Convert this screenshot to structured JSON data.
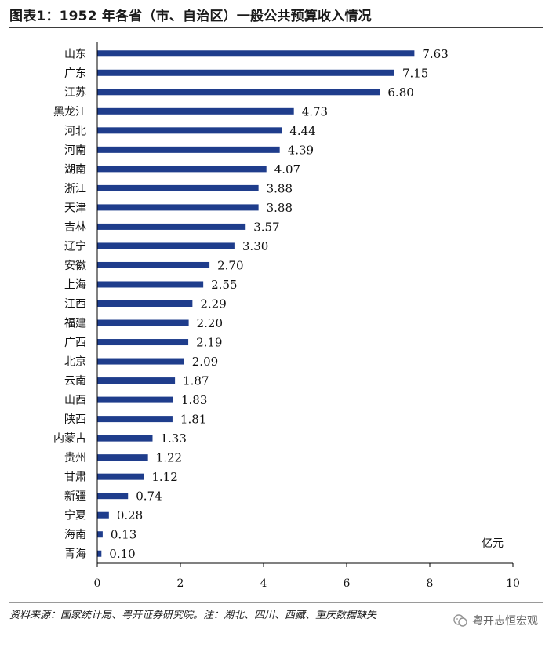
{
  "title": "图表1：1952 年各省（市、自治区）一般公共预算收入情况",
  "source": "资料来源：国家统计局、粤开证券研究院。注：湖北、四川、西藏、重庆数据缺失",
  "watermark": "粤开志恒宏观",
  "colors": {
    "bar": "#1f3d8c",
    "axis": "#000000"
  },
  "chart_data": {
    "type": "bar",
    "orientation": "horizontal",
    "categories": [
      "山东",
      "广东",
      "江苏",
      "黑龙江",
      "河北",
      "河南",
      "湖南",
      "浙江",
      "天津",
      "吉林",
      "辽宁",
      "安徽",
      "上海",
      "江西",
      "福建",
      "广西",
      "北京",
      "云南",
      "山西",
      "陕西",
      "内蒙古",
      "贵州",
      "甘肃",
      "新疆",
      "宁夏",
      "海南",
      "青海"
    ],
    "values": [
      7.63,
      7.15,
      6.8,
      4.73,
      4.44,
      4.39,
      4.07,
      3.88,
      3.88,
      3.57,
      3.3,
      2.7,
      2.55,
      2.29,
      2.2,
      2.19,
      2.09,
      1.87,
      1.83,
      1.81,
      1.33,
      1.22,
      1.12,
      0.74,
      0.28,
      0.13,
      0.1
    ],
    "value_labels": [
      "7.63",
      "7.15",
      "6.80",
      "4.73",
      "4.44",
      "4.39",
      "4.07",
      "3.88",
      "3.88",
      "3.57",
      "3.30",
      "2.70",
      "2.55",
      "2.29",
      "2.20",
      "2.19",
      "2.09",
      "1.87",
      "1.83",
      "1.81",
      "1.33",
      "1.22",
      "1.12",
      "0.74",
      "0.28",
      "0.13",
      "0.10"
    ],
    "xlim": [
      0,
      10
    ],
    "xticks": [
      0,
      2,
      4,
      6,
      8,
      10
    ],
    "unit_label": "亿元",
    "grid": false,
    "legend": "none"
  }
}
